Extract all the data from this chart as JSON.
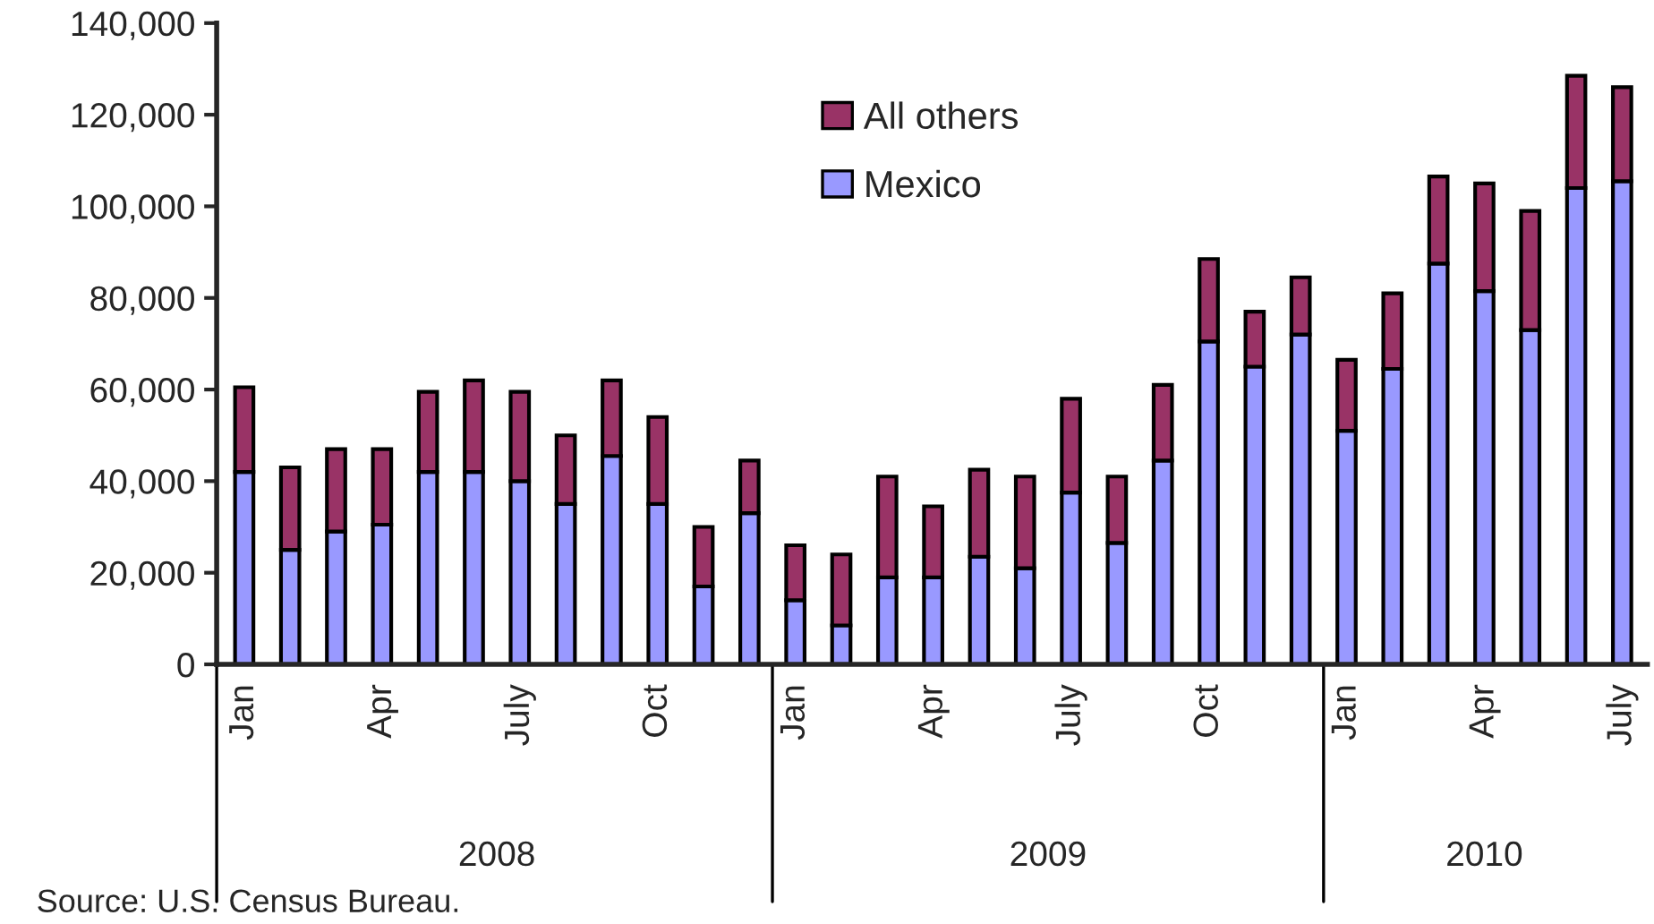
{
  "chart_data": {
    "type": "bar",
    "stacked": true,
    "categories": [
      "Jan",
      null,
      null,
      "Apr",
      null,
      null,
      "July",
      null,
      null,
      "Oct",
      null,
      null,
      "Jan",
      null,
      null,
      "Apr",
      null,
      null,
      "July",
      null,
      null,
      "Oct",
      null,
      null,
      "Jan",
      null,
      null,
      "Apr",
      null,
      null,
      "July"
    ],
    "series": [
      {
        "name": "Mexico",
        "color": "#9999ff",
        "values": [
          42000,
          25000,
          29000,
          30500,
          42000,
          42000,
          40000,
          35000,
          45500,
          35000,
          17000,
          33000,
          14000,
          8500,
          19000,
          19000,
          23500,
          21000,
          37500,
          26500,
          44500,
          70500,
          65000,
          72000,
          51000,
          64500,
          87500,
          81500,
          73000,
          104000,
          105500
        ]
      },
      {
        "name": "All others",
        "color": "#993366",
        "values": [
          18500,
          18000,
          18000,
          16500,
          17500,
          20000,
          19500,
          15000,
          16500,
          19000,
          13000,
          11500,
          12000,
          15500,
          22000,
          15500,
          19000,
          20000,
          20500,
          14500,
          16500,
          18000,
          12000,
          12500,
          15500,
          16500,
          19000,
          23500,
          26000,
          24500,
          20500
        ]
      }
    ],
    "ylim": [
      0,
      140000
    ],
    "yticks": [
      {
        "value": 0,
        "label": "0"
      },
      {
        "value": 20000,
        "label": "20,000"
      },
      {
        "value": 40000,
        "label": "40,000"
      },
      {
        "value": 60000,
        "label": "60,000"
      },
      {
        "value": 80000,
        "label": "80,000"
      },
      {
        "value": 100000,
        "label": "100,000"
      },
      {
        "value": 120000,
        "label": "120,000"
      },
      {
        "value": 140000,
        "label": "140,000"
      }
    ],
    "grid": false,
    "legend": "top",
    "annotations": [
      "2008",
      "2009",
      "2010",
      "Source: U.S. Census Bureau."
    ]
  }
}
